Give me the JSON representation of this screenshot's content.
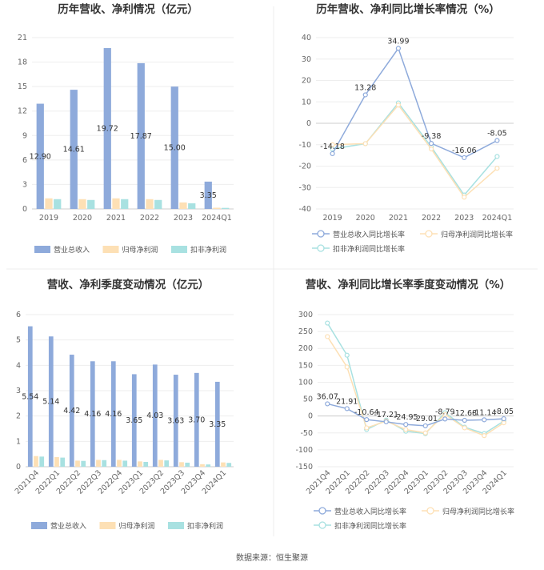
{
  "colors": {
    "revenue": "#8eaadb",
    "net_profit": "#fde0b5",
    "deducted_profit": "#a8e1e1"
  },
  "source": "数据来源：恒生聚源",
  "chart_data": [
    {
      "type": "bar",
      "title": "历年营收、净利情况（亿元）",
      "categories": [
        "2019",
        "2020",
        "2021",
        "2022",
        "2023",
        "2024Q1"
      ],
      "ylim": [
        0,
        21
      ],
      "yticks": [
        "0",
        "3",
        "6",
        "9",
        "12",
        "15",
        "18",
        "21"
      ],
      "legend": "bottom",
      "series": [
        {
          "name": "营业总收入",
          "values": [
            12.9,
            14.61,
            19.72,
            17.87,
            15.0,
            3.35
          ],
          "labels": [
            "12.90",
            "14.61",
            "19.72",
            "17.87",
            "15.00",
            "3.35"
          ]
        },
        {
          "name": "归母净利润",
          "values": [
            1.3,
            1.2,
            1.3,
            1.2,
            0.8,
            0.15
          ]
        },
        {
          "name": "扣非净利润",
          "values": [
            1.2,
            1.1,
            1.2,
            1.1,
            0.7,
            0.13
          ]
        }
      ]
    },
    {
      "type": "line",
      "title": "历年营收、净利同比增长率情况（%）",
      "categories": [
        "2019",
        "2020",
        "2021",
        "2022",
        "2023",
        "2024Q1"
      ],
      "ylim": [
        -40,
        40
      ],
      "yticks": [
        "-40",
        "-30",
        "-20",
        "-10",
        "0",
        "10",
        "20",
        "30",
        "40"
      ],
      "legend": "bottom",
      "series": [
        {
          "name": "营业总收入同比增长率",
          "values": [
            -14.18,
            13.28,
            34.99,
            -9.38,
            -16.06,
            -8.05
          ],
          "labels": [
            "-14.18",
            "13.28",
            "34.99",
            "-9.38",
            "-16.06",
            "-8.05"
          ]
        },
        {
          "name": "归母净利润同比增长率",
          "values": [
            -10,
            -9.5,
            8.5,
            -12,
            -34.5,
            -21
          ]
        },
        {
          "name": "扣非净利润同比增长率",
          "values": [
            -12,
            -9.5,
            9.5,
            -11,
            -33.5,
            -15.5
          ]
        }
      ]
    },
    {
      "type": "bar",
      "title": "营收、净利季度变动情况（亿元）",
      "categories": [
        "2021Q4",
        "2022Q1",
        "2022Q2",
        "2022Q3",
        "2022Q4",
        "2023Q1",
        "2023Q2",
        "2023Q3",
        "2023Q4",
        "2024Q1"
      ],
      "ylim": [
        0,
        6
      ],
      "yticks": [
        "0",
        "1",
        "2",
        "3",
        "4",
        "5",
        "6"
      ],
      "legend": "bottom",
      "series": [
        {
          "name": "营业总收入",
          "values": [
            5.54,
            5.14,
            4.42,
            4.16,
            4.16,
            3.65,
            4.03,
            3.63,
            3.7,
            3.35
          ],
          "labels": [
            "5.54",
            "5.14",
            "4.42",
            "4.16",
            "4.16",
            "3.65",
            "4.03",
            "3.63",
            "3.70",
            "3.35"
          ]
        },
        {
          "name": "归母净利润",
          "values": [
            0.42,
            0.38,
            0.24,
            0.27,
            0.27,
            0.21,
            0.27,
            0.18,
            0.1,
            0.17
          ]
        },
        {
          "name": "扣非净利润",
          "values": [
            0.4,
            0.36,
            0.23,
            0.26,
            0.24,
            0.19,
            0.25,
            0.16,
            0.09,
            0.15
          ]
        }
      ]
    },
    {
      "type": "line",
      "title": "营收、净利同比增长率季度变动情况（%）",
      "categories": [
        "2021Q4",
        "2022Q1",
        "2022Q2",
        "2022Q3",
        "2022Q4",
        "2023Q1",
        "2023Q2",
        "2023Q3",
        "2023Q4",
        "2024Q1"
      ],
      "ylim": [
        -150,
        300
      ],
      "yticks": [
        "-150",
        "-100",
        "-50",
        "0",
        "50",
        "100",
        "150",
        "200",
        "250",
        "300"
      ],
      "legend": "bottom",
      "series": [
        {
          "name": "营业总收入同比增长率",
          "values": [
            36.07,
            21.91,
            -10.64,
            -17.21,
            -24.95,
            -29.01,
            -8.79,
            -12.68,
            -11.14,
            -8.05
          ],
          "labels": [
            "36.07",
            "21.91",
            "-10.64",
            "-17.21",
            "-24.95",
            "-29.01",
            "-8.79",
            "-12.68",
            "-11.14",
            "-8.05"
          ]
        },
        {
          "name": "归母净利润同比增长率",
          "values": [
            235,
            145,
            -35,
            -15,
            -40,
            -50,
            5,
            -35,
            -58,
            -20
          ]
        },
        {
          "name": "扣非净利润同比增长率",
          "values": [
            275,
            180,
            -40,
            -12,
            -45,
            -52,
            10,
            -33,
            -52,
            -15
          ]
        }
      ]
    }
  ]
}
